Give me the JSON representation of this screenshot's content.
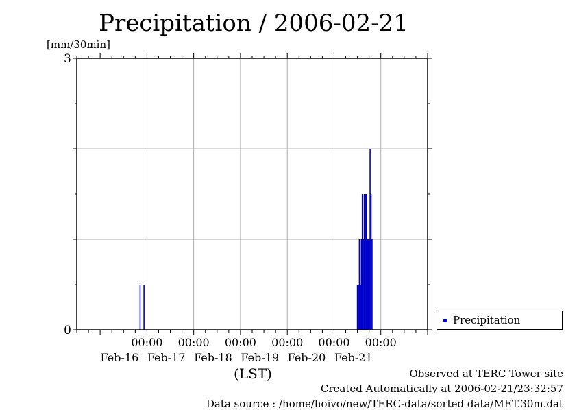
{
  "chart_data": {
    "type": "bar",
    "title": "Precipitation / 2006-02-21",
    "ylabel": "[mm/30min]",
    "xlabel": "(LST)",
    "ylim": [
      0,
      3
    ],
    "y_ticks": [
      "0",
      "3"
    ],
    "x_range_hours": [
      -36,
      144
    ],
    "x_ticks": [
      {
        "hour": 0,
        "time": "00:00",
        "date": "Feb-16"
      },
      {
        "hour": 24,
        "time": "00:00",
        "date": "Feb-17"
      },
      {
        "hour": 48,
        "time": "00:00",
        "date": "Feb-18"
      },
      {
        "hour": 72,
        "time": "00:00",
        "date": "Feb-19"
      },
      {
        "hour": 96,
        "time": "00:00",
        "date": "Feb-20"
      },
      {
        "hour": 120,
        "time": "00:00",
        "date": "Feb-21"
      }
    ],
    "grid": true,
    "legend_position": "right",
    "series": [
      {
        "name": "Precipitation",
        "color": "#0000cc",
        "points": [
          {
            "hour": -3.5,
            "value": 0.5
          },
          {
            "hour": -1.5,
            "value": 0.5
          },
          {
            "hour": 108.0,
            "value": 0.5
          },
          {
            "hour": 108.5,
            "value": 0.5
          },
          {
            "hour": 109.0,
            "value": 1.0
          },
          {
            "hour": 109.5,
            "value": 0.5
          },
          {
            "hour": 110.0,
            "value": 1.0
          },
          {
            "hour": 110.5,
            "value": 1.5
          },
          {
            "hour": 111.0,
            "value": 1.0
          },
          {
            "hour": 111.5,
            "value": 1.5
          },
          {
            "hour": 112.0,
            "value": 1.5
          },
          {
            "hour": 112.5,
            "value": 1.5
          },
          {
            "hour": 113.0,
            "value": 1.0
          },
          {
            "hour": 113.5,
            "value": 1.0
          },
          {
            "hour": 114.0,
            "value": 1.0
          },
          {
            "hour": 114.5,
            "value": 2.0
          },
          {
            "hour": 115.0,
            "value": 1.5
          },
          {
            "hour": 115.5,
            "value": 1.0
          }
        ]
      }
    ]
  },
  "footer": {
    "line1": "Observed at TERC Tower site",
    "line2": "Created Automatically at 2006-02-21/23:32:57",
    "line3": "Data source : /home/hoivo/new/TERC-data/sorted  data/MET.30m.dat"
  }
}
